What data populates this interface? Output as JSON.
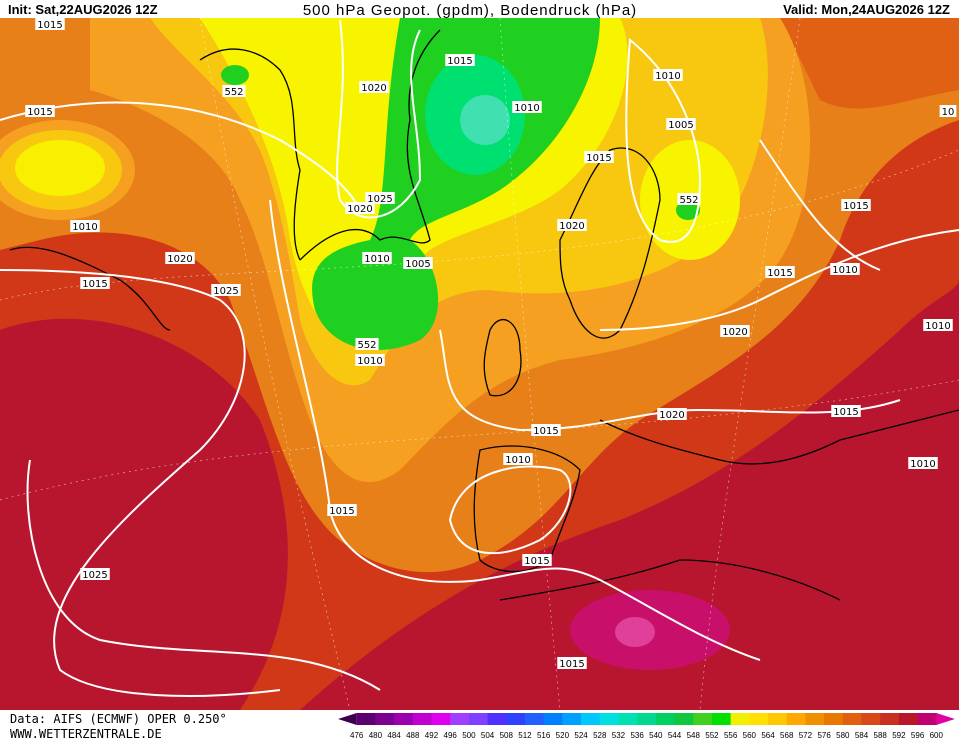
{
  "header": {
    "init": "Init: Sat,22AUG2026 12Z",
    "title": "500 hPa Geopot. (gpdm), Bodendruck (hPa)",
    "valid": "Valid: Mon,24AUG2026 12Z"
  },
  "isobar_labels": [
    "1015",
    "1015",
    "1020",
    "1010",
    "1025",
    "1010",
    "1020",
    "1015",
    "1010",
    "1005",
    "552",
    "1015",
    "552",
    "1020",
    "1015",
    "1010",
    "1005",
    "1020",
    "1015",
    "1025",
    "1015",
    "1010",
    "552",
    "1010",
    "1020",
    "1010",
    "1020",
    "1015",
    "1015",
    "1010",
    "1010",
    "1015",
    "1015",
    "1025",
    "1015",
    "10"
  ],
  "footer": {
    "source": "Data: AIFS (ECMWF) OPER 0.250°",
    "website": "WWW.WETTERZENTRALE.DE"
  },
  "colorbar": {
    "ticks": [
      476,
      480,
      484,
      488,
      492,
      496,
      500,
      504,
      508,
      512,
      516,
      520,
      524,
      528,
      532,
      536,
      540,
      544,
      548,
      552,
      556,
      560,
      564,
      568,
      572,
      576,
      580,
      584,
      588,
      592,
      596,
      600
    ],
    "colors": [
      "#3c0050",
      "#5a0070",
      "#7a0090",
      "#9a00b0",
      "#c000d0",
      "#e000f0",
      "#a040ff",
      "#8040ff",
      "#5030ff",
      "#3040ff",
      "#2060ff",
      "#0080ff",
      "#00a0ff",
      "#00c8ff",
      "#00e0e0",
      "#00e0b0",
      "#00d890",
      "#00d060",
      "#10c840",
      "#40d020",
      "#00e000",
      "#f0f000",
      "#ffe000",
      "#ffc800",
      "#ffa800",
      "#f09000",
      "#e87800",
      "#e06010",
      "#d84818",
      "#c83020",
      "#b81828",
      "#c00070",
      "#e000a0"
    ]
  }
}
